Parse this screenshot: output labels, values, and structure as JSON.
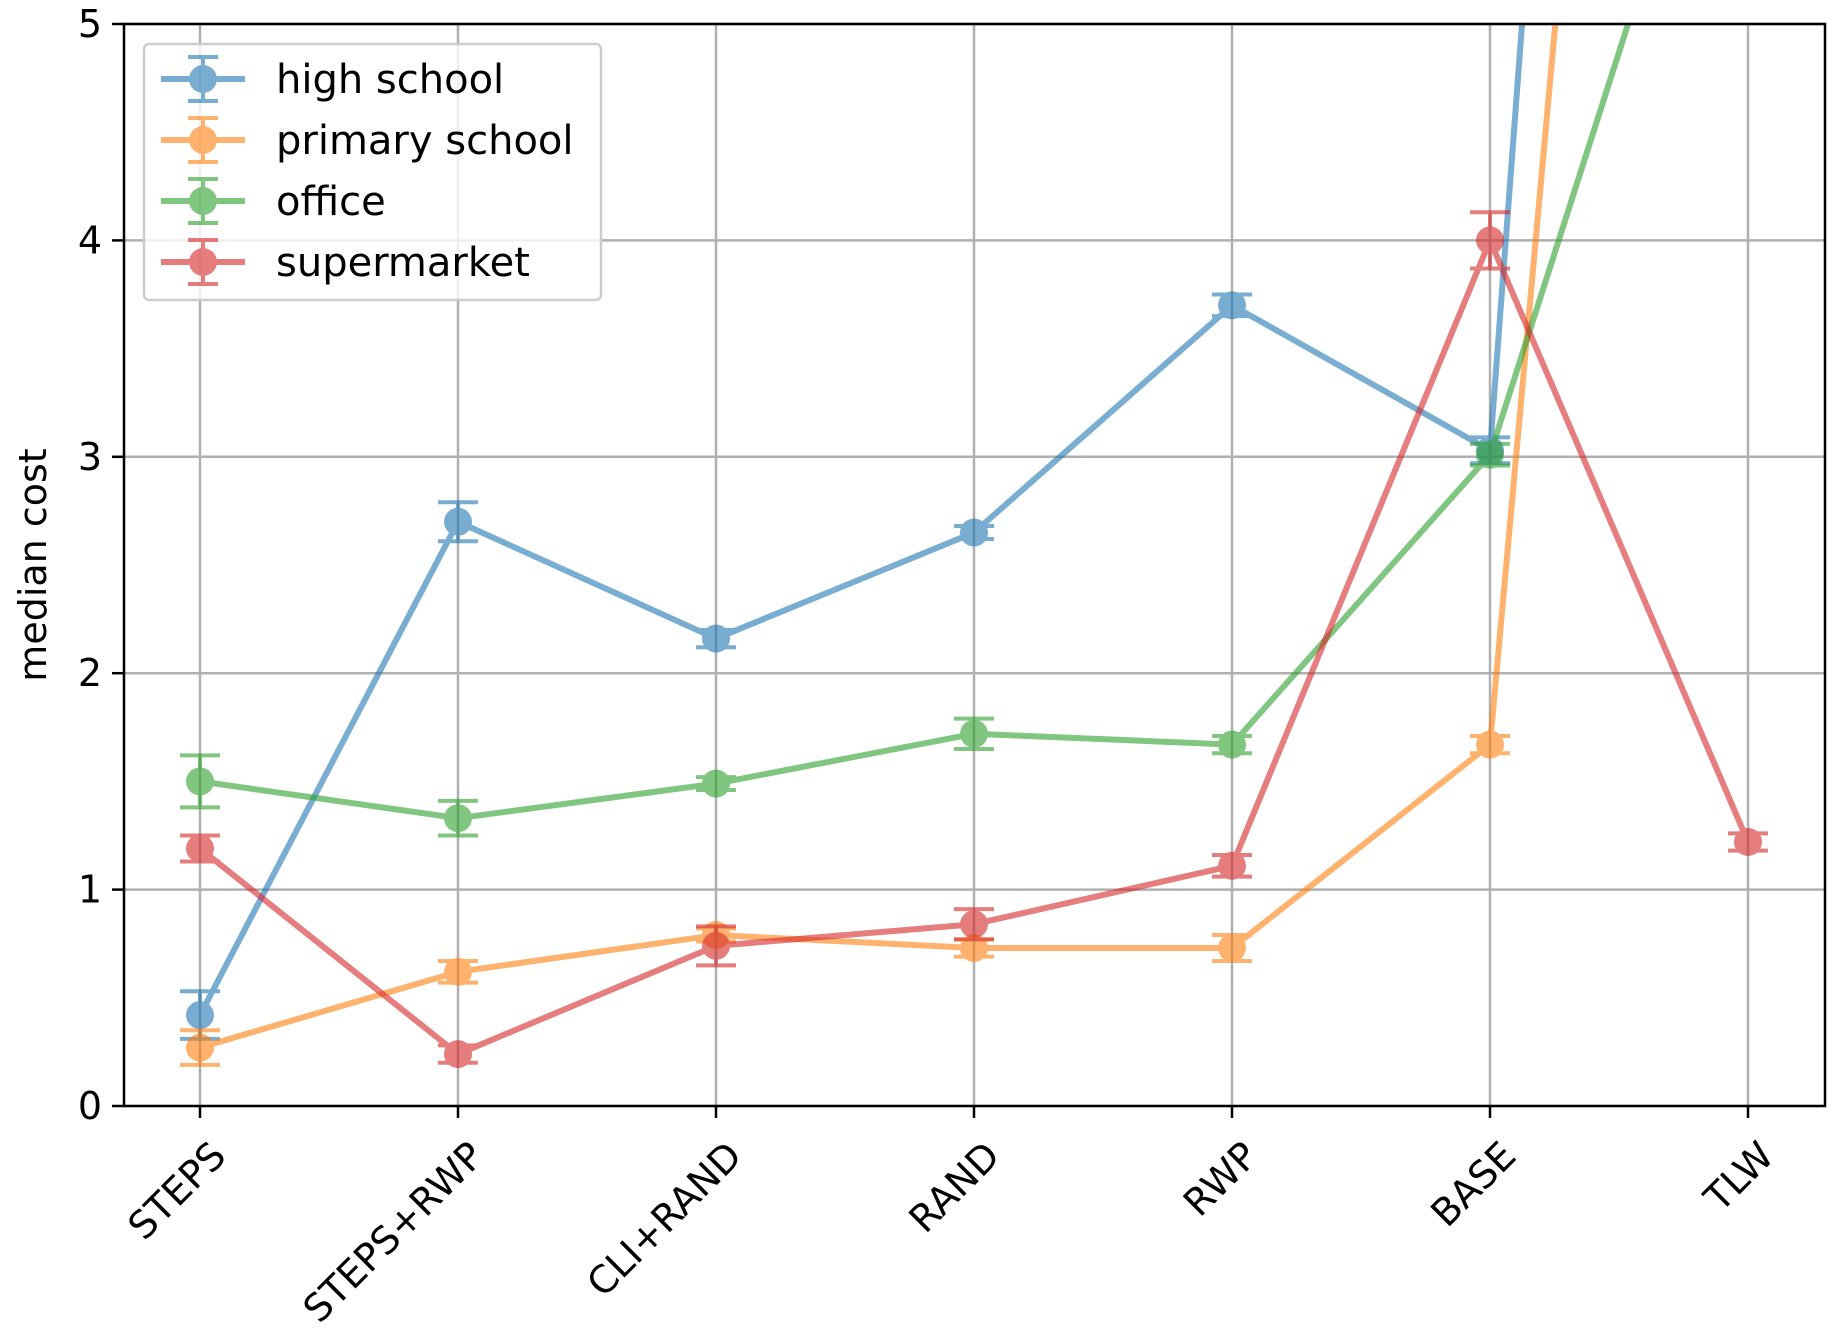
{
  "chart_data": {
    "type": "line",
    "title": "",
    "xlabel": "",
    "ylabel": "median cost",
    "categories": [
      "STEPS",
      "STEPS+RWP",
      "CLI+RAND",
      "RAND",
      "RWP",
      "BASE",
      "TLW"
    ],
    "ylim": [
      0,
      5
    ],
    "yticks": [
      "0",
      "1",
      "2",
      "3",
      "4",
      "5"
    ],
    "grid": true,
    "legend_position": "top-left",
    "series": [
      {
        "name": "high school",
        "color": "#1f77b4",
        "values": [
          0.42,
          2.7,
          2.16,
          2.65,
          3.7,
          3.03,
          null
        ],
        "errors": [
          0.11,
          0.09,
          0.04,
          0.03,
          0.05,
          0.06,
          null
        ],
        "exit_to": {
          "index": 5.13,
          "value": 5
        }
      },
      {
        "name": "primary school",
        "color": "#ff7f0e",
        "values": [
          0.27,
          0.62,
          0.79,
          0.73,
          0.73,
          1.67,
          null
        ],
        "errors": [
          0.08,
          0.05,
          0.03,
          0.04,
          0.06,
          0.04,
          null
        ],
        "exit_to": {
          "index": 5.26,
          "value": 5
        }
      },
      {
        "name": "office",
        "color": "#2ca02c",
        "values": [
          1.5,
          1.33,
          1.49,
          1.72,
          1.67,
          3.01,
          null
        ],
        "errors": [
          0.12,
          0.08,
          0.03,
          0.07,
          0.04,
          0.05,
          null
        ],
        "exit_to": {
          "index": 5.56,
          "value": 5
        }
      },
      {
        "name": "supermarket",
        "color": "#d62728",
        "values": [
          1.19,
          0.24,
          0.74,
          0.84,
          1.11,
          4.0,
          1.22
        ],
        "errors": [
          0.06,
          0.04,
          0.09,
          0.07,
          0.05,
          0.13,
          0.04
        ],
        "exit_to": null
      }
    ]
  }
}
